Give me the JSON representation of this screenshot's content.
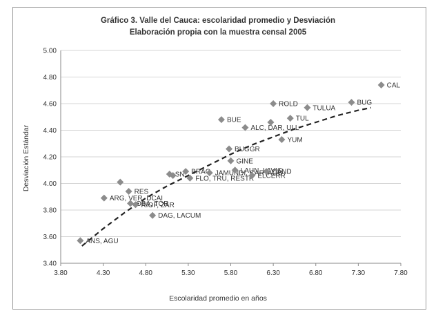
{
  "chart_data": {
    "type": "scatter",
    "title": "Gráfico 3. Valle del Cauca: escolaridad promedio y Desviación",
    "subtitle": "Elaboración propia con la muestra censal 2005",
    "xlabel": "Escolaridad promedio en años",
    "ylabel": "Desviación Estándar",
    "xlim": [
      3.8,
      7.8
    ],
    "ylim": [
      3.4,
      5.0
    ],
    "xticks": [
      "3.80",
      "4.30",
      "4.80",
      "5.30",
      "5.80",
      "6.30",
      "6.80",
      "7.30",
      "7.80"
    ],
    "yticks": [
      "3.40",
      "3.60",
      "3.80",
      "4.00",
      "4.20",
      "4.40",
      "4.60",
      "4.80",
      "5.00"
    ],
    "grid": "horizontal",
    "marker_color": "#8c8c8c",
    "trend_color": "#222222",
    "points": [
      {
        "x": 4.03,
        "y": 3.57,
        "label": "ANS, AGU"
      },
      {
        "x": 4.31,
        "y": 3.89,
        "label": "ARG, VER, DCAI"
      },
      {
        "x": 4.5,
        "y": 4.01,
        "label": ""
      },
      {
        "x": 4.6,
        "y": 3.94,
        "label": "RES"
      },
      {
        "x": 4.62,
        "y": 3.85,
        "label": "OBA, TOR"
      },
      {
        "x": 4.68,
        "y": 3.84,
        "label": "RIOF, ZAR"
      },
      {
        "x": 4.88,
        "y": 3.76,
        "label": "DAG, LACUM"
      },
      {
        "x": 5.08,
        "y": 4.07,
        "label": "SN"
      },
      {
        "x": 5.12,
        "y": 4.06,
        "label": ""
      },
      {
        "x": 5.27,
        "y": 4.09,
        "label": "BRAG"
      },
      {
        "x": 5.32,
        "y": 4.04,
        "label": "FLO, TRU, RESTR"
      },
      {
        "x": 5.55,
        "y": 4.08,
        "label": "JAMUNDI, CARTAGO"
      },
      {
        "x": 5.69,
        "y": 4.48,
        "label": "BUE"
      },
      {
        "x": 5.78,
        "y": 4.26,
        "label": "BUGGR"
      },
      {
        "x": 5.8,
        "y": 4.17,
        "label": "GINE"
      },
      {
        "x": 5.85,
        "y": 4.1,
        "label": "LAUN, LAVIC"
      },
      {
        "x": 5.97,
        "y": 4.42,
        "label": "ALC, DAR, ULL"
      },
      {
        "x": 6.05,
        "y": 4.06,
        "label": "ELCERR"
      },
      {
        "x": 6.22,
        "y": 4.09,
        "label": "CAND"
      },
      {
        "x": 6.27,
        "y": 4.46,
        "label": ""
      },
      {
        "x": 6.3,
        "y": 4.6,
        "label": "ROLD"
      },
      {
        "x": 6.4,
        "y": 4.33,
        "label": "YUM"
      },
      {
        "x": 6.5,
        "y": 4.49,
        "label": "TUL"
      },
      {
        "x": 6.7,
        "y": 4.57,
        "label": "TULUA"
      },
      {
        "x": 7.22,
        "y": 4.61,
        "label": "BUG"
      },
      {
        "x": 7.57,
        "y": 4.74,
        "label": "CAL"
      }
    ],
    "trendline": {
      "type": "polynomial",
      "x": [
        4.05,
        4.3,
        4.55,
        4.8,
        5.05,
        5.3,
        5.55,
        5.8,
        6.05,
        6.3,
        6.55,
        6.8,
        7.05,
        7.3,
        7.45
      ],
      "y": [
        3.53,
        3.66,
        3.78,
        3.89,
        3.98,
        4.06,
        4.14,
        4.22,
        4.29,
        4.35,
        4.41,
        4.46,
        4.51,
        4.55,
        4.57
      ]
    }
  }
}
